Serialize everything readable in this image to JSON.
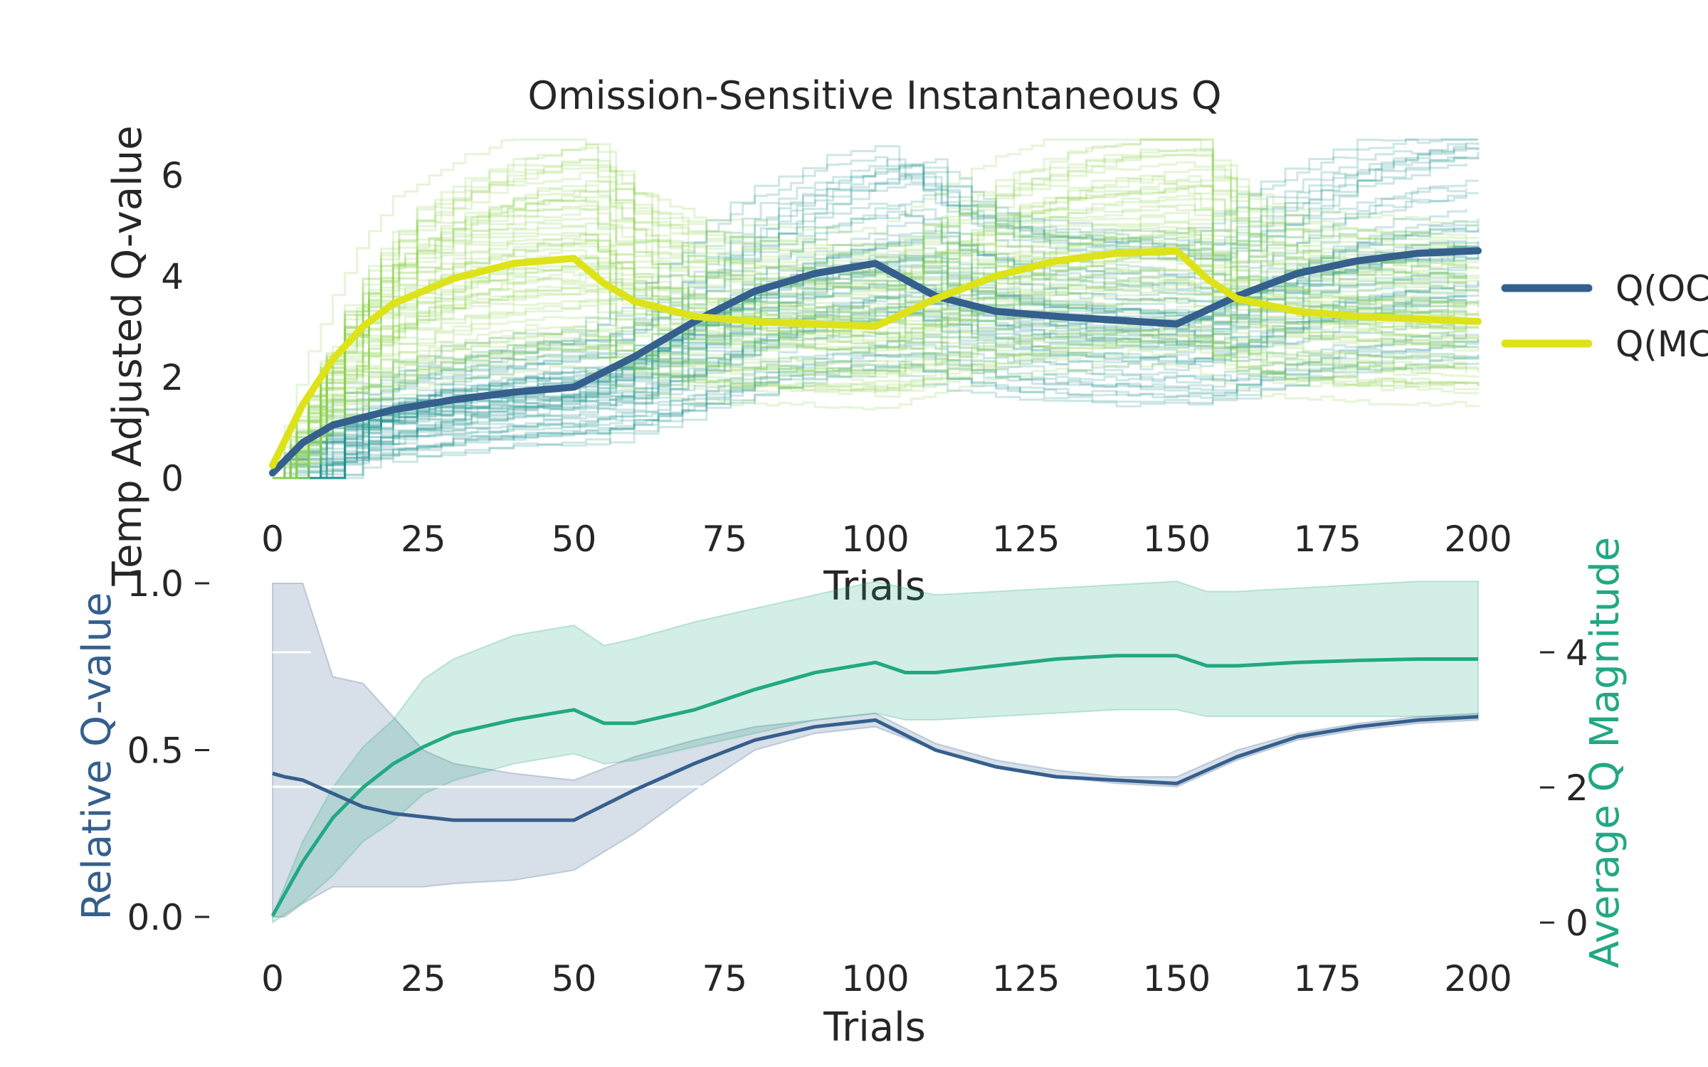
{
  "chart_data": [
    {
      "type": "line",
      "title": "Omission-Sensitive Instantaneous Q",
      "xlabel": "Trials",
      "ylabel": "Temp Adjusted Q-value",
      "xlim": [
        0,
        200
      ],
      "ylim": [
        -0.2,
        7.2
      ],
      "xticks": [
        0,
        25,
        50,
        75,
        100,
        125,
        150,
        175,
        200
      ],
      "yticks": [
        0,
        2,
        4,
        6
      ],
      "grid": false,
      "legend": {
        "placement": "right",
        "entries": [
          "Q(OC",
          "Q(MC"
        ]
      },
      "block_switches": [
        50,
        100,
        150
      ],
      "series": [
        {
          "name": "Q(OC",
          "color": "#355f8d",
          "x": [
            0,
            5,
            10,
            20,
            30,
            40,
            50,
            60,
            70,
            80,
            90,
            100,
            110,
            120,
            130,
            150,
            160,
            170,
            180,
            190,
            200
          ],
          "values": [
            0.1,
            0.7,
            1.05,
            1.35,
            1.55,
            1.7,
            1.8,
            2.4,
            3.1,
            3.7,
            4.05,
            4.25,
            3.6,
            3.3,
            3.2,
            3.05,
            3.6,
            4.05,
            4.3,
            4.45,
            4.5
          ]
        },
        {
          "name": "Q(MC",
          "color": "#dde318",
          "x": [
            0,
            5,
            10,
            15,
            20,
            30,
            40,
            50,
            55,
            60,
            70,
            80,
            90,
            100,
            110,
            120,
            130,
            140,
            150,
            155,
            160,
            170,
            180,
            190,
            200
          ],
          "values": [
            0.25,
            1.45,
            2.35,
            3.0,
            3.45,
            3.95,
            4.25,
            4.35,
            3.85,
            3.5,
            3.2,
            3.1,
            3.05,
            3.0,
            3.55,
            4.0,
            4.3,
            4.45,
            4.5,
            3.95,
            3.55,
            3.3,
            3.2,
            3.15,
            3.1
          ]
        }
      ],
      "individual_traces": {
        "per_group": 60,
        "colors": [
          "#21908d",
          "#8fd14f"
        ],
        "opacity": 0.22
      }
    },
    {
      "type": "line",
      "xlabel": "Trials",
      "ylabel": "Relative Q-value",
      "ylabel_right": "Average Q Magnitude",
      "xlim": [
        0,
        200
      ],
      "ylim": [
        0.0,
        1.0
      ],
      "ylim_right": [
        -0.05,
        5.05
      ],
      "xticks": [
        0,
        25,
        50,
        75,
        100,
        125,
        150,
        175,
        200
      ],
      "yticks": [
        0.0,
        0.5,
        1.0
      ],
      "yticks_right": [
        0,
        2,
        4
      ],
      "grid": false,
      "series": [
        {
          "name": "Relative Q-value",
          "axis": "left",
          "color": "#355f8d",
          "x": [
            0,
            2,
            5,
            10,
            15,
            20,
            25,
            30,
            40,
            50,
            60,
            70,
            80,
            90,
            100,
            110,
            120,
            130,
            140,
            150,
            160,
            170,
            180,
            190,
            200
          ],
          "values": [
            0.43,
            0.42,
            0.41,
            0.37,
            0.33,
            0.31,
            0.3,
            0.29,
            0.29,
            0.29,
            0.38,
            0.46,
            0.53,
            0.57,
            0.59,
            0.5,
            0.45,
            0.42,
            0.41,
            0.4,
            0.48,
            0.54,
            0.57,
            0.59,
            0.6
          ],
          "band_low": [
            0.0,
            0.0,
            0.04,
            0.09,
            0.09,
            0.09,
            0.09,
            0.1,
            0.11,
            0.14,
            0.25,
            0.38,
            0.5,
            0.55,
            0.57,
            0.5,
            0.45,
            0.42,
            0.4,
            0.39,
            0.47,
            0.53,
            0.56,
            0.58,
            0.59
          ],
          "band_high": [
            1.0,
            1.0,
            1.0,
            0.72,
            0.7,
            0.6,
            0.5,
            0.46,
            0.43,
            0.41,
            0.48,
            0.53,
            0.57,
            0.59,
            0.61,
            0.52,
            0.47,
            0.44,
            0.42,
            0.42,
            0.5,
            0.55,
            0.58,
            0.6,
            0.61
          ]
        },
        {
          "name": "Average Q Magnitude",
          "axis": "right",
          "color": "#22a884",
          "x": [
            0,
            5,
            10,
            15,
            20,
            25,
            30,
            40,
            50,
            55,
            60,
            70,
            80,
            90,
            100,
            105,
            110,
            120,
            130,
            140,
            150,
            155,
            160,
            170,
            180,
            190,
            200
          ],
          "values": [
            0.1,
            0.9,
            1.55,
            2.0,
            2.35,
            2.6,
            2.8,
            3.0,
            3.15,
            2.95,
            2.95,
            3.15,
            3.45,
            3.7,
            3.85,
            3.7,
            3.7,
            3.8,
            3.9,
            3.95,
            3.95,
            3.8,
            3.8,
            3.85,
            3.88,
            3.9,
            3.9
          ],
          "band_low": [
            0.0,
            0.3,
            0.7,
            1.2,
            1.5,
            1.9,
            2.1,
            2.35,
            2.5,
            2.35,
            2.4,
            2.6,
            2.8,
            3.0,
            3.1,
            3.0,
            3.0,
            3.05,
            3.1,
            3.15,
            3.15,
            3.05,
            3.05,
            3.05,
            3.05,
            3.05,
            3.05
          ],
          "band_high": [
            0.1,
            1.2,
            2.0,
            2.6,
            3.0,
            3.6,
            3.9,
            4.25,
            4.4,
            4.1,
            4.2,
            4.45,
            4.65,
            4.85,
            5.05,
            4.95,
            4.85,
            4.9,
            4.95,
            5.0,
            5.05,
            4.9,
            4.9,
            4.95,
            5.0,
            5.05,
            5.05
          ]
        }
      ]
    }
  ]
}
